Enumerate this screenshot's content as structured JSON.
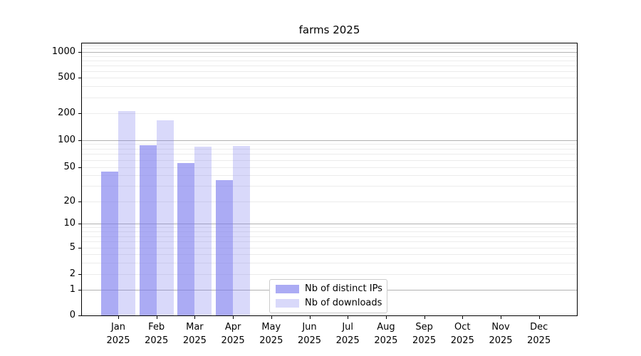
{
  "chart_data": {
    "type": "bar",
    "title": "farms 2025",
    "categories": [
      "Jan",
      "Feb",
      "Mar",
      "Apr",
      "May",
      "Jun",
      "Jul",
      "Aug",
      "Sep",
      "Oct",
      "Nov",
      "Dec"
    ],
    "category_year": "2025",
    "series": [
      {
        "name": "Nb of distinct IPs",
        "color_hex": "#a9a9f4",
        "color_rgba": "rgba(119,119,238,0.62)",
        "values": [
          44,
          87,
          55,
          35,
          null,
          null,
          null,
          null,
          null,
          null,
          null,
          null
        ]
      },
      {
        "name": "Nb of downloads",
        "color_hex": "#d9d9f8",
        "color_rgba": "rgba(119,119,238,0.28)",
        "values": [
          210,
          165,
          85,
          86,
          null,
          null,
          null,
          null,
          null,
          null,
          null,
          null
        ]
      }
    ],
    "yscale": "symlog",
    "ylim": [
      0,
      1300
    ],
    "yticks": [
      0,
      1,
      2,
      5,
      10,
      20,
      50,
      100,
      200,
      500,
      1000
    ],
    "grid": true,
    "grid_major_color": "#b2b2b2",
    "grid_minor_color": "#ececec",
    "legend_position": "bottom-center"
  }
}
